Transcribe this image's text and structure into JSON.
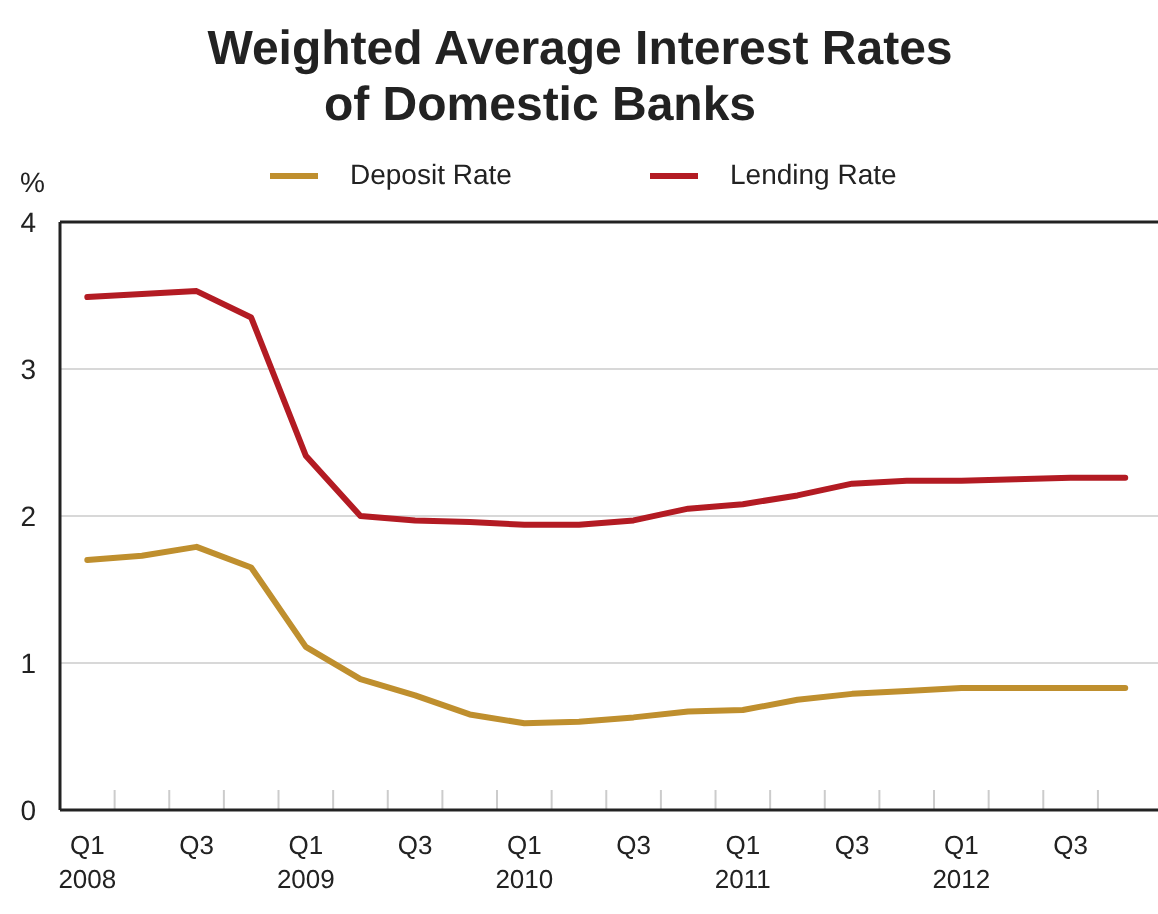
{
  "chart_data": {
    "type": "line",
    "title": "Weighted Average Interest Rates\nof Domestic Banks",
    "ylabel": "%",
    "categories": [
      "Q1\n2008",
      null,
      "Q3",
      null,
      "Q1\n2009",
      null,
      "Q3",
      null,
      "Q1\n2010",
      null,
      "Q3",
      null,
      "Q1\n2011",
      null,
      "Q3",
      null,
      "Q1\n2012",
      null,
      "Q3",
      null
    ],
    "series": [
      {
        "name": "Deposit Rate",
        "color": "#bf8f2e",
        "values": [
          1.7,
          1.73,
          1.79,
          1.65,
          1.11,
          0.89,
          0.78,
          0.65,
          0.59,
          0.6,
          0.63,
          0.67,
          0.68,
          0.75,
          0.79,
          0.81,
          0.83,
          0.83,
          0.83,
          0.83
        ]
      },
      {
        "name": "Lending Rate",
        "color": "#b31b23",
        "values": [
          3.49,
          3.51,
          3.53,
          3.35,
          2.41,
          2.0,
          1.97,
          1.96,
          1.94,
          1.94,
          1.97,
          2.05,
          2.08,
          2.14,
          2.22,
          2.24,
          2.24,
          2.25,
          2.26,
          2.26
        ]
      }
    ],
    "ylim": [
      0,
      4
    ],
    "yticks": [
      0,
      1,
      2,
      3,
      4
    ],
    "grid": "y",
    "legend": "top",
    "marker": "none",
    "line_style": "solid"
  }
}
